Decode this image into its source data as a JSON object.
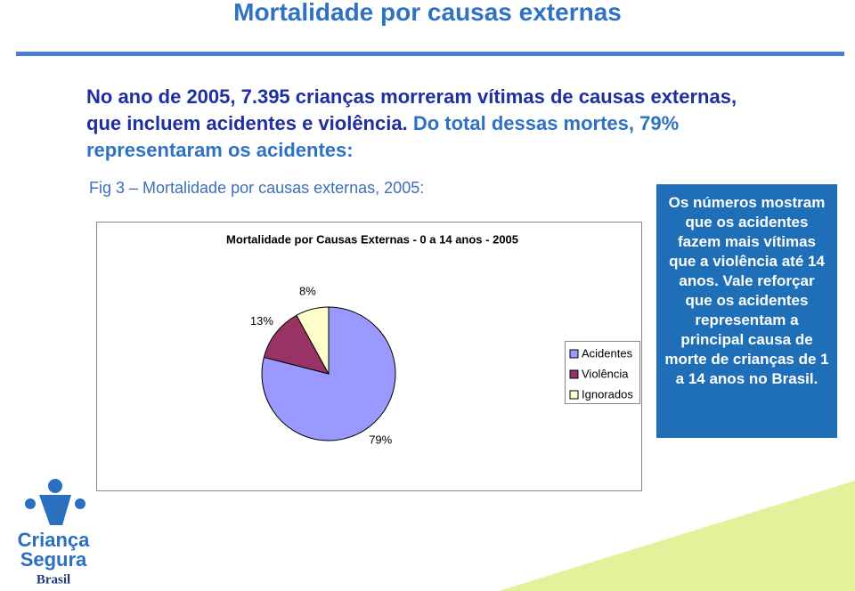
{
  "slide": {
    "title": "Mortalidade por causas externas",
    "intro_highlight": "No ano de 2005, 7.395 crianças morreram vítimas de causas externas, que incluem acidentes e violência.",
    "intro_rest": "Do total dessas mortes, 79% representaram os acidentes:",
    "figure_caption": "Fig 3 – Mortalidade por causas externas, 2005:",
    "callout": "Os números mostram que os acidentes fazem mais vítimas que a violência até 14 anos. Vale reforçar que os acidentes representam a principal causa de morte de crianças de 1 a 14 anos no Brasil.",
    "logo": {
      "line1": "Criança",
      "line2": "Segura",
      "line3": "Brasil"
    }
  },
  "chart_data": {
    "type": "pie",
    "title": "Mortalidade por Causas Externas - 0 a 14 anos - 2005",
    "categories": [
      "Acidentes",
      "Violência",
      "Ignorados"
    ],
    "values": [
      79,
      13,
      8
    ],
    "value_labels": [
      "79%",
      "13%",
      "8%"
    ],
    "colors": [
      "#9999ff",
      "#993366",
      "#ffffcc"
    ],
    "direction": "clockwise",
    "legend": "right"
  }
}
